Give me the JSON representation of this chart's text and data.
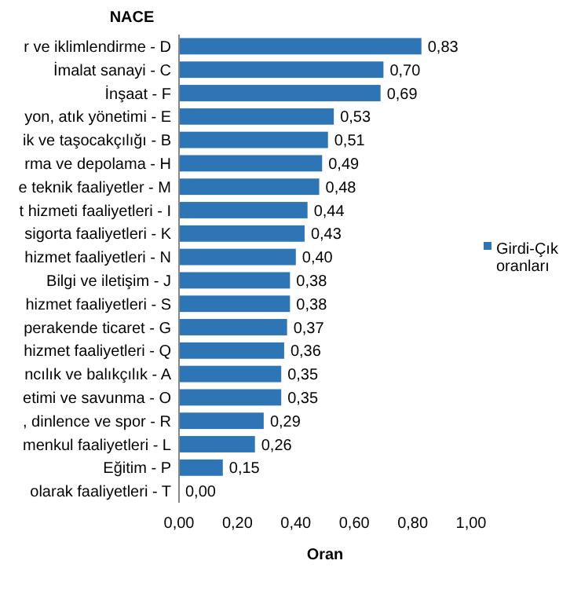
{
  "chart_data": {
    "type": "bar",
    "orientation": "horizontal",
    "ylabel": "NACE",
    "xlabel": "Oran",
    "categories": [
      "r ve iklimlendirme - D",
      "İmalat sanayi - C",
      "İnşaat - F",
      "yon, atık yönetimi - E",
      "ik ve taşocakçılığı - B",
      "rma ve depolama - H",
      "e teknik faaliyetler - M",
      "t hizmeti faaliyetleri - I",
      "sigorta faaliyetleri - K",
      "hizmet faaliyetleri - N",
      "Bilgi ve iletişim - J",
      "hizmet faaliyetleri - S",
      "perakende ticaret - G",
      "hizmet faaliyetleri - Q",
      "ncılık ve balıkçılık - A",
      "etimi ve savunma - O",
      ", dinlence ve spor - R",
      "menkul faaliyetleri - L",
      "Eğitim - P",
      "olarak  faaliyetleri - T"
    ],
    "series": [
      {
        "name": "Girdi-Çık oranları",
        "color": "#2e75b6",
        "values": [
          0.83,
          0.7,
          0.69,
          0.53,
          0.51,
          0.49,
          0.48,
          0.44,
          0.43,
          0.4,
          0.38,
          0.38,
          0.37,
          0.36,
          0.35,
          0.35,
          0.29,
          0.26,
          0.15,
          0.0
        ]
      }
    ],
    "xlim": [
      0,
      1
    ],
    "xticks": [
      {
        "value": 0,
        "label": "0,00"
      },
      {
        "value": 0.2,
        "label": "0,20"
      },
      {
        "value": 0.4,
        "label": "0,40"
      },
      {
        "value": 0.6,
        "label": "0,60"
      },
      {
        "value": 0.8,
        "label": "0,80"
      },
      {
        "value": 1,
        "label": "1,00"
      }
    ],
    "value_labels": [
      "0,83",
      "0,70",
      "0,69",
      "0,53",
      "0,51",
      "0,49",
      "0,48",
      "0,44",
      "0,43",
      "0,40",
      "0,38",
      "0,38",
      "0,37",
      "0,36",
      "0,35",
      "0,35",
      "0,29",
      "0,26",
      "0,15",
      "0,00"
    ],
    "legend": "right",
    "grid": false
  }
}
